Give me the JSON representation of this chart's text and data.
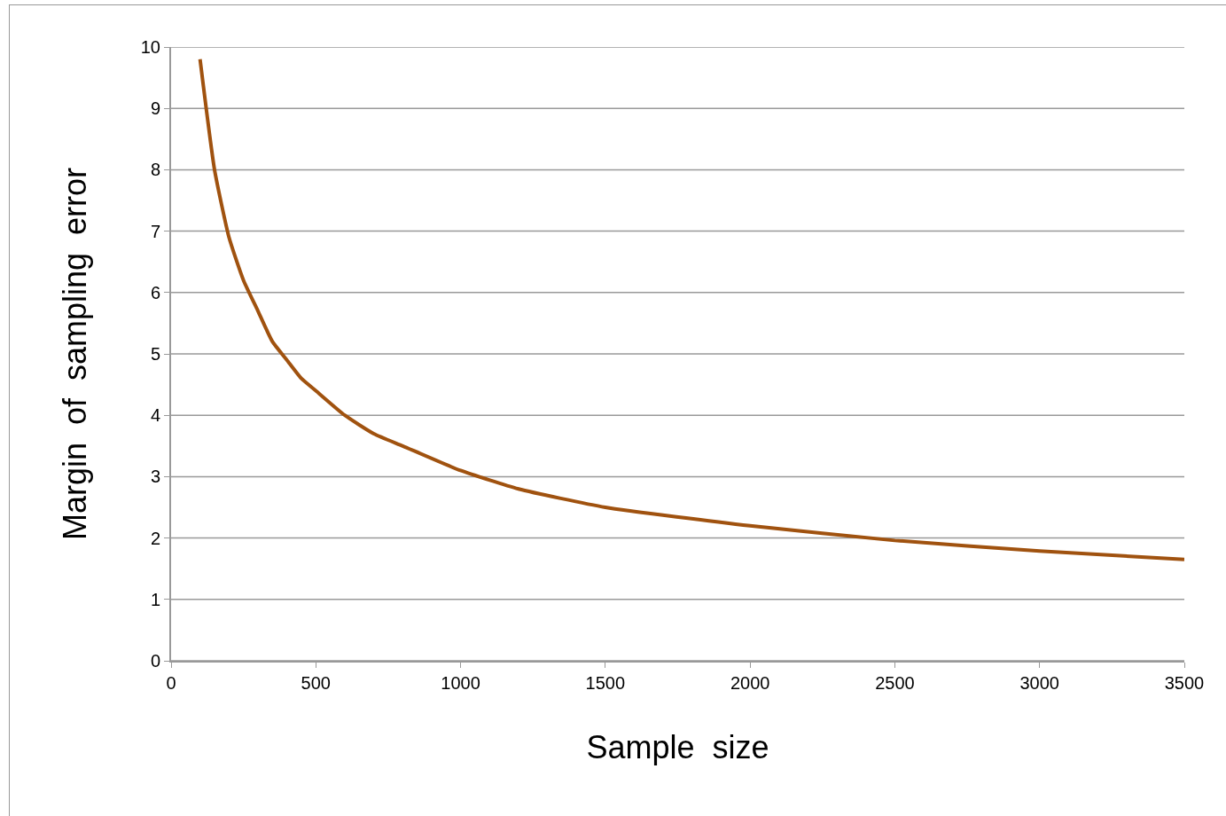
{
  "chart_data": {
    "type": "line",
    "xlabel": "Sample  size",
    "ylabel": "Margin  of  sampling  error",
    "x": [
      100,
      150,
      200,
      250,
      300,
      350,
      400,
      450,
      500,
      600,
      700,
      800,
      1000,
      1200,
      1500,
      2000,
      2500,
      3000,
      3500
    ],
    "series": [
      {
        "color": "#a0520f",
        "values": [
          9.8,
          8.0,
          6.9,
          6.2,
          5.7,
          5.2,
          4.9,
          4.6,
          4.4,
          4.0,
          3.7,
          3.5,
          3.1,
          2.8,
          2.5,
          2.2,
          1.96,
          1.79,
          1.65
        ]
      }
    ],
    "xlim": [
      0,
      3500
    ],
    "xticks": [
      0,
      500,
      1000,
      1500,
      2000,
      2500,
      3000,
      3500
    ],
    "ylim": [
      0,
      10
    ],
    "yticks": [
      0,
      1,
      2,
      3,
      4,
      5,
      6,
      7,
      8,
      9,
      10
    ],
    "grid": "y",
    "marker": "none",
    "line_style": "solid"
  }
}
